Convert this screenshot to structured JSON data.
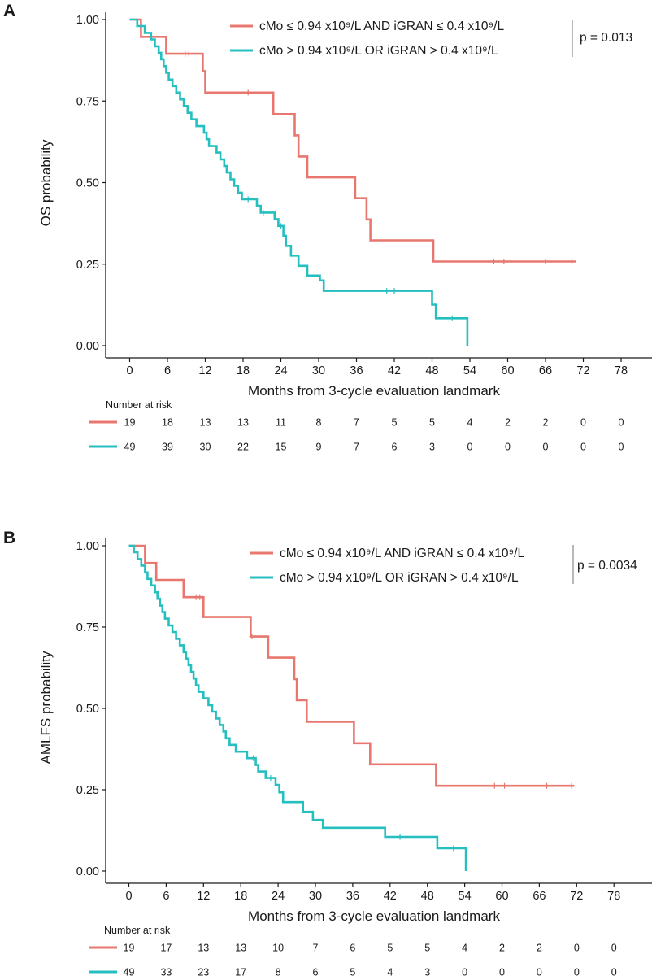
{
  "colors": {
    "group1": "#e8776f",
    "group2": "#26bfbf",
    "axis": "#1a1a1a",
    "divider": "#888888"
  },
  "chart_data": [
    {
      "type": "line",
      "panel_label": "A",
      "title": "",
      "xlabel": "Months from 3-cycle evaluation landmark",
      "ylabel": "OS probability",
      "xlim": [
        -3,
        81
      ],
      "ylim": [
        0,
        1
      ],
      "x_ticks": [
        "0",
        "6",
        "12",
        "18",
        "24",
        "30",
        "36",
        "42",
        "48",
        "54",
        "60",
        "66",
        "72",
        "78"
      ],
      "y_ticks": [
        "0.00",
        "0.25",
        "0.50",
        "0.75",
        "1.00"
      ],
      "p_value": "p = 0.013",
      "risk_table_title": "Number at risk",
      "series": [
        {
          "name": "cMo ≤ 0.94 x10⁹/L AND iGRAN ≤ 0.4 x10⁹/L",
          "color_key": "group1",
          "steps": [
            [
              0,
              1.0
            ],
            [
              1.8,
              0.947
            ],
            [
              5.8,
              0.895
            ],
            [
              11.6,
              0.842
            ],
            [
              12.0,
              0.776
            ],
            [
              22.8,
              0.71
            ],
            [
              26.2,
              0.645
            ],
            [
              26.8,
              0.58
            ],
            [
              28.2,
              0.516
            ],
            [
              35.8,
              0.452
            ],
            [
              37.6,
              0.387
            ],
            [
              38.2,
              0.323
            ],
            [
              48.2,
              0.258
            ],
            [
              70.8,
              0.258
            ]
          ],
          "censors": [
            [
              8.8,
              0.895
            ],
            [
              9.4,
              0.895
            ],
            [
              18.8,
              0.776
            ],
            [
              57.8,
              0.258
            ],
            [
              59.4,
              0.258
            ],
            [
              66.0,
              0.258
            ],
            [
              70.2,
              0.258
            ]
          ],
          "at_risk": [
            "19",
            "18",
            "13",
            "13",
            "11",
            "8",
            "7",
            "5",
            "5",
            "4",
            "2",
            "2",
            "0",
            "0"
          ]
        },
        {
          "name": "cMo > 0.94 x10⁹/L OR iGRAN > 0.4 x10⁹/L",
          "color_key": "group2",
          "steps": [
            [
              0,
              1.0
            ],
            [
              1.2,
              0.98
            ],
            [
              2.4,
              0.959
            ],
            [
              3.4,
              0.939
            ],
            [
              4.0,
              0.918
            ],
            [
              4.6,
              0.898
            ],
            [
              5.0,
              0.878
            ],
            [
              5.4,
              0.857
            ],
            [
              5.8,
              0.837
            ],
            [
              6.2,
              0.816
            ],
            [
              6.8,
              0.796
            ],
            [
              7.4,
              0.776
            ],
            [
              8.0,
              0.755
            ],
            [
              8.6,
              0.735
            ],
            [
              9.2,
              0.714
            ],
            [
              9.8,
              0.694
            ],
            [
              10.6,
              0.673
            ],
            [
              11.8,
              0.653
            ],
            [
              12.2,
              0.633
            ],
            [
              12.6,
              0.612
            ],
            [
              13.8,
              0.592
            ],
            [
              14.4,
              0.571
            ],
            [
              15.0,
              0.551
            ],
            [
              15.4,
              0.531
            ],
            [
              16.0,
              0.51
            ],
            [
              16.6,
              0.49
            ],
            [
              17.2,
              0.469
            ],
            [
              17.8,
              0.449
            ],
            [
              20.2,
              0.429
            ],
            [
              20.8,
              0.408
            ],
            [
              23.0,
              0.388
            ],
            [
              23.6,
              0.367
            ],
            [
              24.4,
              0.337
            ],
            [
              24.8,
              0.306
            ],
            [
              25.6,
              0.276
            ],
            [
              26.8,
              0.245
            ],
            [
              28.2,
              0.215
            ],
            [
              30.2,
              0.2
            ],
            [
              30.8,
              0.168
            ],
            [
              48.0,
              0.126
            ],
            [
              48.6,
              0.084
            ],
            [
              53.2,
              0.084
            ],
            [
              53.6,
              0.0
            ]
          ],
          "censors": [
            [
              18.8,
              0.449
            ],
            [
              21.2,
              0.408
            ],
            [
              24.0,
              0.367
            ],
            [
              40.8,
              0.168
            ],
            [
              42.0,
              0.168
            ],
            [
              51.2,
              0.084
            ]
          ],
          "at_risk": [
            "49",
            "39",
            "30",
            "22",
            "15",
            "9",
            "7",
            "6",
            "3",
            "0",
            "0",
            "0",
            "0",
            "0"
          ]
        }
      ]
    },
    {
      "type": "line",
      "panel_label": "B",
      "title": "",
      "xlabel": "Months from 3-cycle evaluation landmark",
      "ylabel": "AMLFS probability",
      "xlim": [
        -3,
        81
      ],
      "ylim": [
        0,
        1
      ],
      "x_ticks": [
        "0",
        "6",
        "12",
        "18",
        "24",
        "30",
        "36",
        "42",
        "48",
        "54",
        "60",
        "66",
        "72",
        "78"
      ],
      "y_ticks": [
        "0.00",
        "0.25",
        "0.50",
        "0.75",
        "1.00"
      ],
      "p_value": "p = 0.0034",
      "risk_table_title": "Number at risk",
      "series": [
        {
          "name": "cMo ≤ 0.94 x10⁹/L AND iGRAN ≤ 0.4 x10⁹/L",
          "color_key": "group1",
          "steps": [
            [
              0,
              1.0
            ],
            [
              2.6,
              0.947
            ],
            [
              4.4,
              0.895
            ],
            [
              8.8,
              0.842
            ],
            [
              12.0,
              0.781
            ],
            [
              19.6,
              0.721
            ],
            [
              22.4,
              0.656
            ],
            [
              26.6,
              0.59
            ],
            [
              27.0,
              0.525
            ],
            [
              28.6,
              0.459
            ],
            [
              36.2,
              0.393
            ],
            [
              38.8,
              0.328
            ],
            [
              49.4,
              0.262
            ],
            [
              71.6,
              0.262
            ]
          ],
          "censors": [
            [
              10.8,
              0.842
            ],
            [
              11.4,
              0.842
            ],
            [
              19.8,
              0.721
            ],
            [
              58.8,
              0.262
            ],
            [
              60.4,
              0.262
            ],
            [
              67.2,
              0.262
            ],
            [
              71.2,
              0.262
            ]
          ],
          "at_risk": [
            "19",
            "17",
            "13",
            "13",
            "10",
            "7",
            "6",
            "5",
            "5",
            "4",
            "2",
            "2",
            "0",
            "0"
          ]
        },
        {
          "name": "cMo > 0.94 x10⁹/L OR iGRAN > 0.4 x10⁹/L",
          "color_key": "group2",
          "steps": [
            [
              0,
              1.0
            ],
            [
              0.8,
              0.98
            ],
            [
              1.4,
              0.959
            ],
            [
              2.0,
              0.939
            ],
            [
              2.6,
              0.918
            ],
            [
              3.0,
              0.898
            ],
            [
              3.6,
              0.878
            ],
            [
              4.2,
              0.857
            ],
            [
              4.6,
              0.837
            ],
            [
              5.0,
              0.816
            ],
            [
              5.4,
              0.796
            ],
            [
              5.8,
              0.776
            ],
            [
              6.4,
              0.755
            ],
            [
              7.0,
              0.735
            ],
            [
              7.6,
              0.714
            ],
            [
              8.2,
              0.694
            ],
            [
              8.8,
              0.673
            ],
            [
              9.2,
              0.653
            ],
            [
              9.6,
              0.633
            ],
            [
              10.0,
              0.612
            ],
            [
              10.4,
              0.592
            ],
            [
              10.8,
              0.571
            ],
            [
              11.2,
              0.551
            ],
            [
              12.0,
              0.531
            ],
            [
              12.8,
              0.51
            ],
            [
              13.4,
              0.49
            ],
            [
              14.0,
              0.469
            ],
            [
              14.6,
              0.449
            ],
            [
              15.2,
              0.429
            ],
            [
              15.6,
              0.408
            ],
            [
              16.2,
              0.388
            ],
            [
              17.2,
              0.367
            ],
            [
              19.0,
              0.347
            ],
            [
              20.4,
              0.326
            ],
            [
              20.8,
              0.306
            ],
            [
              22.0,
              0.286
            ],
            [
              23.6,
              0.265
            ],
            [
              24.2,
              0.242
            ],
            [
              24.8,
              0.212
            ],
            [
              28.0,
              0.182
            ],
            [
              29.6,
              0.157
            ],
            [
              31.2,
              0.133
            ],
            [
              41.2,
              0.105
            ],
            [
              49.6,
              0.07
            ],
            [
              53.6,
              0.07
            ],
            [
              54.2,
              0.0
            ]
          ],
          "censors": [
            [
              20.0,
              0.347
            ],
            [
              22.8,
              0.286
            ],
            [
              43.6,
              0.105
            ],
            [
              52.2,
              0.07
            ]
          ],
          "at_risk": [
            "49",
            "33",
            "23",
            "17",
            "8",
            "6",
            "5",
            "4",
            "3",
            "0",
            "0",
            "0",
            "0",
            "0"
          ]
        }
      ]
    }
  ]
}
